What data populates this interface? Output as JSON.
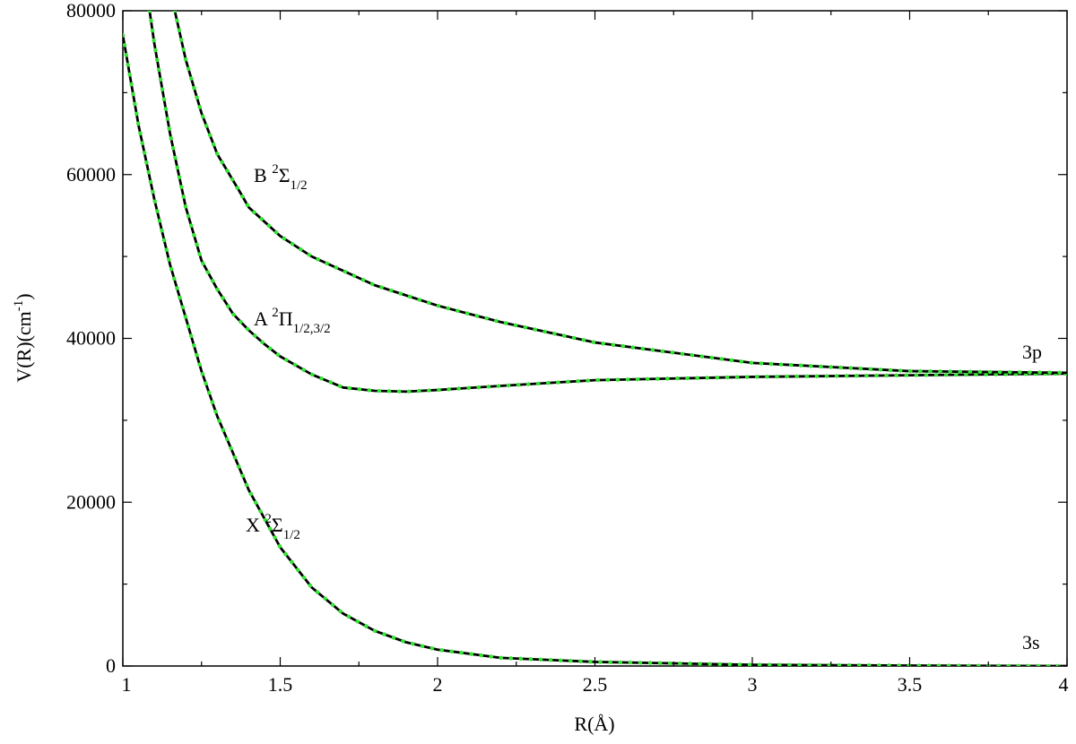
{
  "chart_data": {
    "type": "line",
    "x_label": "R(Å)",
    "y_label": {
      "main": "V(R)(cm",
      "sup": "-1",
      "end": ")"
    },
    "xlim": [
      1,
      4
    ],
    "ylim": [
      0,
      80000
    ],
    "xticks": [
      1,
      1.5,
      2,
      2.5,
      3,
      3.5,
      4
    ],
    "yticks": [
      0,
      20000,
      40000,
      60000,
      80000
    ],
    "xminor": [
      1.25,
      1.75,
      2.25,
      2.75,
      3.25,
      3.75
    ],
    "yminor": [
      10000,
      30000,
      50000,
      70000
    ],
    "line_color": "#000000",
    "dot_color": "#33e633",
    "series": [
      {
        "x": [
          1.0,
          1.05,
          1.1,
          1.15,
          1.2,
          1.25,
          1.3,
          1.4,
          1.5,
          1.6,
          1.7,
          1.8,
          1.9,
          2.0,
          2.2,
          2.5,
          3.0,
          3.5,
          4.0
        ],
        "values": [
          77000,
          66000,
          57000,
          49000,
          42500,
          36000,
          30500,
          21500,
          14500,
          9600,
          6400,
          4300,
          2900,
          2000,
          1000,
          500,
          150,
          50,
          0
        ]
      },
      {
        "x": [
          1.085,
          1.1,
          1.15,
          1.2,
          1.25,
          1.3,
          1.35,
          1.4,
          1.45,
          1.5,
          1.6,
          1.7,
          1.8,
          1.9,
          2.0,
          2.2,
          2.5,
          3.0,
          3.5,
          4.0
        ],
        "values": [
          80000,
          76000,
          65000,
          56000,
          49500,
          46000,
          43000,
          41000,
          39300,
          37800,
          35600,
          34000,
          33600,
          33500,
          33700,
          34200,
          34900,
          35300,
          35500,
          35700
        ]
      },
      {
        "x": [
          1.165,
          1.2,
          1.25,
          1.3,
          1.37,
          1.4,
          1.5,
          1.6,
          1.8,
          2.0,
          2.2,
          2.5,
          3.0,
          3.5,
          4.0
        ],
        "values": [
          80000,
          74000,
          67500,
          62500,
          58000,
          56000,
          52500,
          50000,
          46500,
          44000,
          42000,
          39500,
          37000,
          36000,
          35800
        ]
      }
    ],
    "annotations": [
      {
        "main": "B ",
        "sup": "2",
        "symbol": "Σ",
        "sub": "1/2"
      },
      {
        "main": "A ",
        "sup": "2",
        "symbol": "Π",
        "sub": "1/2,3/2"
      },
      {
        "main": "X ",
        "sup": "2",
        "symbol": "Σ",
        "sub": "1/2"
      },
      {
        "main": "3p"
      },
      {
        "main": "3s"
      }
    ]
  }
}
